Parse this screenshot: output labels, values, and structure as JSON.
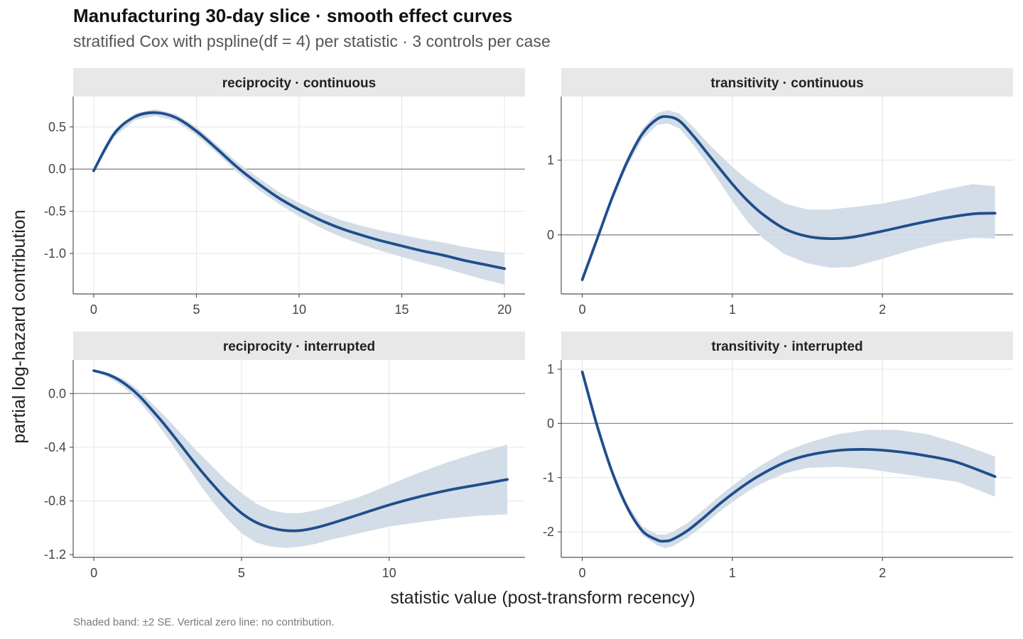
{
  "title": "Manufacturing 30-day slice · smooth effect curves",
  "subtitle": "stratified Cox with pspline(df = 4) per statistic · 3 controls per case",
  "xlabel": "statistic value (post-transform recency)",
  "ylabel": "partial log-hazard contribution",
  "caption": "Shaded band: ±2 SE.  Vertical zero line: no contribution.",
  "colors": {
    "line": "#1f4e8c",
    "band": "#d1dbe6",
    "strip": "#e8e8e8",
    "zero": "#8a8a8a",
    "grid": "#e5e5e5"
  },
  "chart_data": [
    {
      "type": "line",
      "panel": "reciprocity · continuous",
      "xlim": [
        -1,
        21
      ],
      "ylim": [
        -1.48,
        0.86
      ],
      "xticks": [
        0,
        5,
        10,
        15,
        20
      ],
      "yticks": [
        0.5,
        0.0,
        -0.5,
        -1.0
      ],
      "ytick_labels": [
        "0.5",
        "0.0",
        "-0.5",
        "-1.0"
      ],
      "x": [
        0,
        1,
        2,
        3,
        4,
        5,
        6,
        7,
        8,
        9,
        10,
        11,
        12,
        13,
        14,
        15,
        16,
        17,
        18,
        19,
        20
      ],
      "y": [
        -0.02,
        0.42,
        0.62,
        0.67,
        0.61,
        0.45,
        0.24,
        0.02,
        -0.17,
        -0.34,
        -0.48,
        -0.6,
        -0.7,
        -0.78,
        -0.85,
        -0.91,
        -0.97,
        -1.02,
        -1.08,
        -1.13,
        -1.18
      ],
      "lower": [
        -0.03,
        0.38,
        0.58,
        0.63,
        0.57,
        0.4,
        0.19,
        -0.04,
        -0.24,
        -0.41,
        -0.56,
        -0.69,
        -0.8,
        -0.89,
        -0.97,
        -1.04,
        -1.11,
        -1.17,
        -1.24,
        -1.31,
        -1.37
      ],
      "upper": [
        -0.01,
        0.46,
        0.66,
        0.71,
        0.65,
        0.5,
        0.29,
        0.08,
        -0.1,
        -0.27,
        -0.4,
        -0.51,
        -0.6,
        -0.67,
        -0.73,
        -0.78,
        -0.83,
        -0.87,
        -0.92,
        -0.96,
        -0.99
      ]
    },
    {
      "type": "line",
      "panel": "transitivity · continuous",
      "xlim": [
        -0.14,
        2.87
      ],
      "ylim": [
        -0.79,
        1.85
      ],
      "xticks": [
        0,
        1,
        2
      ],
      "yticks": [
        1,
        0
      ],
      "ytick_labels": [
        "1",
        "0"
      ],
      "x": [
        0,
        0.1,
        0.2,
        0.3,
        0.4,
        0.5,
        0.57,
        0.65,
        0.75,
        0.85,
        1.0,
        1.1,
        1.2,
        1.35,
        1.5,
        1.65,
        1.8,
        2.0,
        2.2,
        2.4,
        2.6,
        2.75
      ],
      "y": [
        -0.6,
        -0.05,
        0.5,
        0.98,
        1.35,
        1.55,
        1.58,
        1.52,
        1.3,
        1.05,
        0.68,
        0.46,
        0.28,
        0.08,
        -0.02,
        -0.05,
        -0.03,
        0.05,
        0.14,
        0.22,
        0.28,
        0.29
      ],
      "lower": [
        -0.6,
        -0.08,
        0.45,
        0.92,
        1.28,
        1.47,
        1.49,
        1.42,
        1.18,
        0.9,
        0.45,
        0.18,
        -0.04,
        -0.26,
        -0.38,
        -0.44,
        -0.43,
        -0.32,
        -0.2,
        -0.1,
        -0.04,
        -0.05
      ],
      "upper": [
        -0.6,
        -0.02,
        0.55,
        1.04,
        1.42,
        1.63,
        1.67,
        1.62,
        1.42,
        1.2,
        0.91,
        0.74,
        0.6,
        0.42,
        0.34,
        0.34,
        0.37,
        0.42,
        0.5,
        0.6,
        0.68,
        0.65
      ]
    },
    {
      "type": "line",
      "panel": "reciprocity · interrupted",
      "xlim": [
        -0.7,
        14.6
      ],
      "ylim": [
        -1.22,
        0.25
      ],
      "xticks": [
        0,
        5,
        10
      ],
      "yticks": [
        0.0,
        -0.4,
        -0.8,
        -1.2
      ],
      "ytick_labels": [
        "0.0",
        "-0.4",
        "-0.8",
        "-1.2"
      ],
      "x": [
        0,
        0.5,
        1,
        1.5,
        2,
        2.5,
        3,
        3.5,
        4,
        4.5,
        5,
        5.5,
        6,
        6.5,
        7,
        7.5,
        8,
        9,
        10,
        11,
        12,
        13,
        14
      ],
      "y": [
        0.17,
        0.14,
        0.08,
        -0.01,
        -0.13,
        -0.26,
        -0.4,
        -0.54,
        -0.67,
        -0.79,
        -0.89,
        -0.96,
        -1.0,
        -1.02,
        -1.02,
        -1.0,
        -0.97,
        -0.9,
        -0.83,
        -0.77,
        -0.72,
        -0.68,
        -0.64
      ],
      "lower": [
        0.17,
        0.12,
        0.05,
        -0.05,
        -0.18,
        -0.33,
        -0.49,
        -0.65,
        -0.8,
        -0.93,
        -1.04,
        -1.11,
        -1.14,
        -1.15,
        -1.14,
        -1.12,
        -1.09,
        -1.04,
        -0.99,
        -0.96,
        -0.93,
        -0.91,
        -0.9
      ],
      "upper": [
        0.17,
        0.15,
        0.11,
        0.03,
        -0.08,
        -0.19,
        -0.31,
        -0.43,
        -0.54,
        -0.65,
        -0.74,
        -0.82,
        -0.87,
        -0.89,
        -0.89,
        -0.87,
        -0.84,
        -0.77,
        -0.68,
        -0.59,
        -0.51,
        -0.44,
        -0.38
      ]
    },
    {
      "type": "line",
      "panel": "transitivity · interrupted",
      "xlim": [
        -0.14,
        2.87
      ],
      "ylim": [
        -2.47,
        1.17
      ],
      "xticks": [
        0,
        1,
        2
      ],
      "yticks": [
        1,
        0,
        -1,
        -2
      ],
      "ytick_labels": [
        "1",
        "0",
        "-1",
        "-2"
      ],
      "x": [
        0,
        0.1,
        0.2,
        0.3,
        0.4,
        0.5,
        0.55,
        0.6,
        0.7,
        0.8,
        0.9,
        1.0,
        1.1,
        1.2,
        1.35,
        1.5,
        1.7,
        1.9,
        2.1,
        2.3,
        2.5,
        2.75
      ],
      "y": [
        0.95,
        -0.05,
        -0.9,
        -1.55,
        -1.98,
        -2.15,
        -2.17,
        -2.14,
        -1.98,
        -1.76,
        -1.52,
        -1.3,
        -1.1,
        -0.93,
        -0.72,
        -0.59,
        -0.5,
        -0.48,
        -0.52,
        -0.6,
        -0.72,
        -0.98
      ],
      "lower": [
        0.95,
        -0.08,
        -0.95,
        -1.62,
        -2.06,
        -2.25,
        -2.3,
        -2.27,
        -2.11,
        -1.9,
        -1.66,
        -1.45,
        -1.26,
        -1.1,
        -0.92,
        -0.82,
        -0.8,
        -0.84,
        -0.92,
        -1.0,
        -1.08,
        -1.35
      ],
      "upper": [
        0.95,
        -0.02,
        -0.85,
        -1.48,
        -1.9,
        -2.05,
        -2.05,
        -2.0,
        -1.84,
        -1.61,
        -1.37,
        -1.15,
        -0.94,
        -0.76,
        -0.52,
        -0.36,
        -0.2,
        -0.12,
        -0.12,
        -0.2,
        -0.36,
        -0.61
      ]
    }
  ]
}
